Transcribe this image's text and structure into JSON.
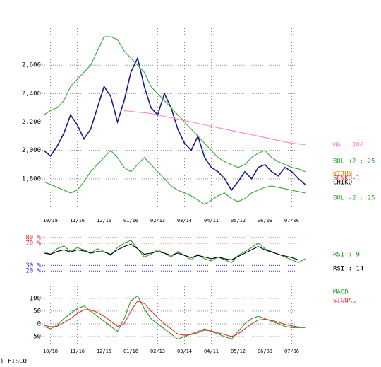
{
  "chart_data": [
    {
      "type": "line",
      "categories": [
        null,
        "10/18",
        null,
        null,
        null,
        "11/16",
        null,
        null,
        null,
        "12/15",
        null,
        null,
        null,
        "01/16",
        null,
        null,
        null,
        "02/13",
        null,
        null,
        null,
        "03/14",
        null,
        null,
        null,
        "04/11",
        null,
        null,
        null,
        "05/12",
        null,
        null,
        null,
        "06/09",
        null,
        null,
        null,
        "07/06",
        null,
        null
      ],
      "ylim": [
        1590,
        2860
      ],
      "yticks": [
        {
          "value": 1800,
          "label": "1,800"
        },
        {
          "value": 2000,
          "label": "2,000"
        },
        {
          "value": 2200,
          "label": "2,200"
        },
        {
          "value": 2400,
          "label": "2,400"
        },
        {
          "value": 2600,
          "label": "2,600"
        }
      ],
      "grid": true,
      "series": [
        {
          "color": "#1a1a8c",
          "values": [
            2000,
            1960,
            2030,
            2120,
            2250,
            2180,
            2080,
            2150,
            2300,
            2450,
            2380,
            2200,
            2350,
            2550,
            2650,
            2450,
            2300,
            2250,
            2400,
            2300,
            2150,
            2050,
            2000,
            2100,
            1950,
            1880,
            1850,
            1800,
            1720,
            1780,
            1850,
            1800,
            1880,
            1900,
            1850,
            1820,
            1880,
            1850,
            1800,
            1760
          ]
        },
        {
          "name": "MA : 200",
          "color": "#ff80c8",
          "values": [
            null,
            null,
            null,
            null,
            null,
            null,
            null,
            null,
            null,
            null,
            null,
            null,
            2280,
            2275,
            2270,
            2265,
            2260,
            2250,
            2240,
            2230,
            2220,
            2210,
            2200,
            2190,
            2180,
            2170,
            2160,
            2150,
            2140,
            2130,
            2120,
            2110,
            2100,
            2090,
            2080,
            2070,
            2060,
            2050,
            2045,
            2040
          ]
        },
        {
          "name": "BOL +2 : 25",
          "color": "#33aa33",
          "values": [
            2250,
            2280,
            2300,
            2350,
            2450,
            2500,
            2550,
            2600,
            2700,
            2800,
            2800,
            2780,
            2700,
            2650,
            2600,
            2550,
            2450,
            2400,
            2350,
            2300,
            2250,
            2200,
            2150,
            2100,
            2050,
            2000,
            1950,
            1920,
            1900,
            1880,
            1900,
            1950,
            1980,
            2000,
            1950,
            1920,
            1900,
            1880,
            1870,
            1850
          ]
        },
        {
          "name": "BOL -2 : 25",
          "color": "#33aa33",
          "values": [
            1780,
            1760,
            1740,
            1720,
            1700,
            1720,
            1780,
            1850,
            1900,
            1950,
            2000,
            1950,
            1880,
            1850,
            1900,
            1950,
            1900,
            1850,
            1800,
            1750,
            1720,
            1700,
            1680,
            1650,
            1620,
            1650,
            1680,
            1700,
            1660,
            1640,
            1660,
            1700,
            1720,
            1740,
            1750,
            1740,
            1730,
            1720,
            1710,
            1700
          ]
        }
      ],
      "annotations": [
        "KIJUN",
        "SENKO-1",
        "CHIKO"
      ]
    },
    {
      "type": "line",
      "ylim": [
        5,
        94
      ],
      "yticks": [
        {
          "value": 20,
          "label": "20 %"
        },
        {
          "value": 30,
          "label": "30 %"
        },
        {
          "value": 70,
          "label": "70 %"
        },
        {
          "value": 80,
          "label": "80 %"
        }
      ],
      "tick_colors": [
        "#3030e0",
        "#3030e0",
        "#e03030",
        "#e03030"
      ],
      "series": [
        {
          "name": "RSI : 9",
          "color": "#2a9a2a",
          "values": [
            55,
            50,
            60,
            65,
            55,
            62,
            58,
            52,
            60,
            55,
            48,
            62,
            70,
            75,
            60,
            45,
            50,
            58,
            52,
            45,
            55,
            48,
            40,
            50,
            42,
            38,
            45,
            40,
            35,
            48,
            55,
            62,
            70,
            60,
            55,
            50,
            45,
            40,
            35,
            42
          ]
        },
        {
          "name": "RSI : 14",
          "color": "#000000",
          "values": [
            52,
            50,
            55,
            58,
            54,
            58,
            56,
            52,
            55,
            54,
            50,
            58,
            64,
            68,
            60,
            50,
            52,
            55,
            52,
            48,
            52,
            48,
            44,
            48,
            45,
            42,
            45,
            42,
            40,
            46,
            52,
            58,
            64,
            58,
            54,
            50,
            47,
            44,
            40,
            40
          ]
        }
      ]
    },
    {
      "type": "line",
      "categories": [
        null,
        "10/18",
        null,
        null,
        null,
        "11/16",
        null,
        null,
        null,
        "12/15",
        null,
        null,
        null,
        "01/16",
        null,
        null,
        null,
        "02/13",
        null,
        null,
        null,
        "03/14",
        null,
        null,
        null,
        "04/11",
        null,
        null,
        null,
        "05/12",
        null,
        null,
        null,
        "06/09",
        null,
        null,
        null,
        "07/06",
        null,
        null
      ],
      "ylim": [
        -89,
        147
      ],
      "yticks": [
        -50,
        0,
        50,
        100
      ],
      "grid": true,
      "series": [
        {
          "name": "MACD",
          "color": "#2a9a2a",
          "values": [
            -10,
            -20,
            -5,
            20,
            40,
            60,
            70,
            50,
            30,
            10,
            -10,
            -30,
            20,
            90,
            110,
            60,
            20,
            0,
            -20,
            -40,
            -60,
            -50,
            -40,
            -30,
            -20,
            -30,
            -40,
            -50,
            -60,
            -30,
            0,
            20,
            30,
            20,
            10,
            0,
            -10,
            -15,
            -15,
            -15
          ]
        },
        {
          "name": "SIGNAL",
          "color": "#e03030",
          "values": [
            -5,
            -12,
            -10,
            5,
            20,
            40,
            55,
            55,
            45,
            30,
            10,
            -10,
            0,
            50,
            90,
            80,
            50,
            25,
            0,
            -20,
            -40,
            -45,
            -42,
            -35,
            -25,
            -28,
            -35,
            -42,
            -50,
            -40,
            -20,
            0,
            15,
            18,
            14,
            6,
            -2,
            -8,
            -12,
            -14
          ]
        }
      ]
    }
  ],
  "footer": ") FISCO"
}
